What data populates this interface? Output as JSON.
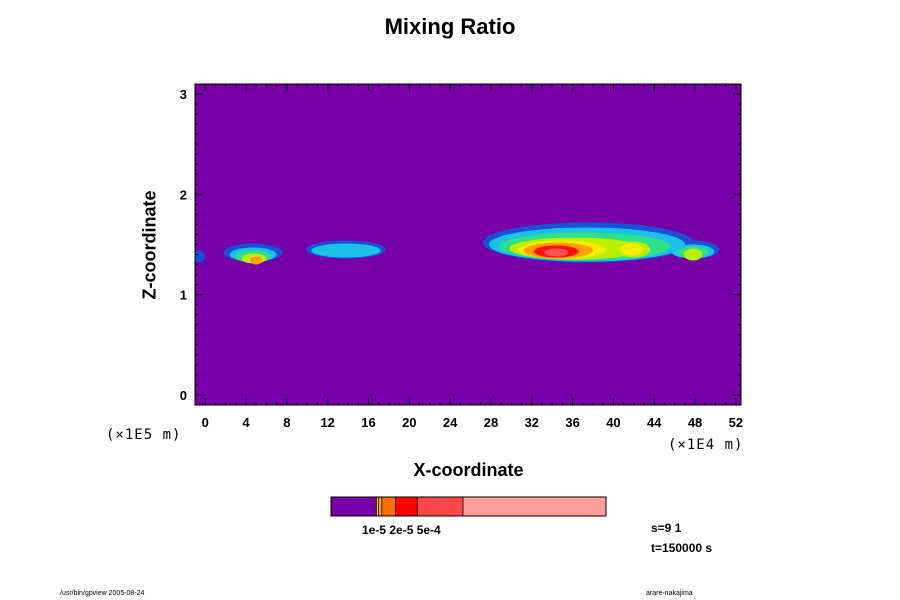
{
  "chart_data": {
    "type": "heatmap",
    "title": "Mixing Ratio",
    "xlabel": "X-coordinate",
    "ylabel": "Z-coordinate",
    "x_unit_label": "(×1E4 m)",
    "y_unit_label": "(×1E5 m)",
    "xlim": [
      -1,
      52.5
    ],
    "ylim": [
      -0.1,
      3.1
    ],
    "x_ticks": [
      "0",
      "4",
      "8",
      "12",
      "16",
      "20",
      "24",
      "28",
      "32",
      "36",
      "40",
      "44",
      "48",
      "52"
    ],
    "x_tick_values": [
      0,
      4,
      8,
      12,
      16,
      20,
      24,
      28,
      32,
      36,
      40,
      44,
      48,
      52
    ],
    "y_ticks": [
      "0",
      "1",
      "2",
      "3"
    ],
    "y_tick_values": [
      0,
      1,
      2,
      3
    ],
    "background_color": "#7800a8",
    "layers": [
      {
        "color": "#1a4fd8",
        "blobs": [
          [
            -0.6,
            1.38,
            0.6,
            0.06
          ],
          [
            4.7,
            1.42,
            2.9,
            0.09
          ],
          [
            13.8,
            1.45,
            3.9,
            0.09
          ],
          [
            37.5,
            1.52,
            10.3,
            0.2
          ],
          [
            47.8,
            1.45,
            2.6,
            0.09
          ]
        ]
      },
      {
        "color": "#19c2e6",
        "blobs": [
          [
            4.7,
            1.4,
            2.3,
            0.07
          ],
          [
            13.8,
            1.44,
            3.4,
            0.07
          ],
          [
            37.4,
            1.5,
            9.6,
            0.17
          ],
          [
            47.8,
            1.43,
            2.1,
            0.07
          ]
        ]
      },
      {
        "color": "#2fe08a",
        "blobs": [
          [
            4.7,
            1.38,
            1.8,
            0.06
          ],
          [
            37.2,
            1.48,
            8.4,
            0.14
          ],
          [
            47.8,
            1.42,
            1.5,
            0.06
          ]
        ]
      },
      {
        "color": "#b8f000",
        "blobs": [
          [
            4.8,
            1.36,
            1.2,
            0.05
          ],
          [
            36.3,
            1.46,
            6.5,
            0.11
          ],
          [
            42.0,
            1.45,
            1.6,
            0.08
          ],
          [
            47.8,
            1.4,
            0.9,
            0.06
          ]
        ]
      },
      {
        "color": "#f8ec00",
        "blobs": [
          [
            35.0,
            1.45,
            4.3,
            0.09
          ],
          [
            41.8,
            1.45,
            1.1,
            0.06
          ]
        ]
      },
      {
        "color": "#ffa000",
        "blobs": [
          [
            5.0,
            1.34,
            0.6,
            0.04
          ],
          [
            34.6,
            1.44,
            3.4,
            0.08
          ]
        ]
      },
      {
        "color": "#ff1010",
        "blobs": [
          [
            34.4,
            1.43,
            2.2,
            0.06
          ]
        ]
      },
      {
        "color": "#ff5050",
        "blobs": [
          [
            34.4,
            1.42,
            1.2,
            0.04
          ]
        ]
      }
    ],
    "colorbar": {
      "segments": [
        {
          "color": "#7800a8",
          "fraction": 0.165
        },
        {
          "color": "#f0e000",
          "fraction": 0.008
        },
        {
          "color": "#ffa000",
          "fraction": 0.012
        },
        {
          "color": "#ff7000",
          "fraction": 0.05
        },
        {
          "color": "#ff0000",
          "fraction": 0.08
        },
        {
          "color": "#ff4848",
          "fraction": 0.165
        },
        {
          "color": "#ff9c9c",
          "fraction": 0.52
        }
      ],
      "tick_labels": "1e-5 2e-5 5e-4"
    },
    "info": {
      "step": "s=9 1",
      "time": "t=150000 s"
    }
  },
  "footer": {
    "left": "/usr/bin/gpview 2005-08-24",
    "right": "arare-nakajima"
  }
}
